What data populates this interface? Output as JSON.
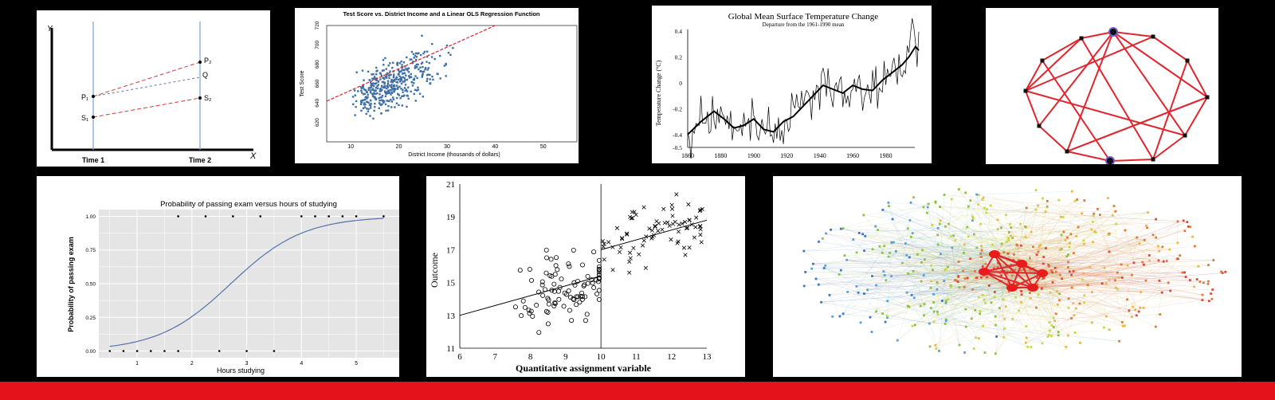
{
  "colors": {
    "background": "#000000",
    "bottom_bar": "#e3121b",
    "scatter_blue": "#3f6fa3",
    "fit_red": "#d9232e",
    "logit_curve": "#5571a8",
    "panel_grey": "#e5e5e5",
    "graph_red": "#e0262f"
  },
  "chart_data": [
    {
      "id": "did",
      "type": "line",
      "title": "",
      "xlabel": "X",
      "ylabel": "Y",
      "categories": [
        "Time 1",
        "Time 2"
      ],
      "point_labels": {
        "p1": "P₁",
        "s1": "S₁",
        "p2": "P₂",
        "q": "Q",
        "s2": "S₂"
      },
      "series": [
        {
          "points": [
            [
              "Time 1",
              "P₁"
            ],
            [
              "Time 2",
              "P₂"
            ]
          ],
          "style": "dashed-red"
        },
        {
          "points": [
            [
              "Time 1",
              "P₁"
            ],
            [
              "Time 2",
              "Q"
            ]
          ],
          "style": "dashed-blue"
        },
        {
          "points": [
            [
              "Time 1",
              "S₁"
            ],
            [
              "Time 2",
              "S₂"
            ]
          ],
          "style": "dashed-red"
        }
      ]
    },
    {
      "id": "ols",
      "type": "scatter",
      "title": "Test Score vs. District Income and a Linear OLS Regression Function",
      "xlabel": "District Income (thousands of dollars)",
      "ylabel": "Test Score",
      "xlim": [
        5,
        57
      ],
      "ylim": [
        600,
        720
      ],
      "xticks": [
        "10",
        "20",
        "30",
        "40",
        "50"
      ],
      "yticks": [
        "620",
        "640",
        "660",
        "680",
        "700",
        "720"
      ],
      "fit_line": [
        [
          5,
          642
        ],
        [
          40,
          720
        ]
      ]
    },
    {
      "id": "temp",
      "type": "line",
      "title": "Global Mean Surface Temperature Change",
      "subtitle": "Departure from the 1961-1990 mean",
      "xlabel": "",
      "ylabel": "Temperature Change (°C)",
      "xlim": [
        1860,
        2000
      ],
      "ylim": [
        -0.5,
        0.4
      ],
      "xticks": [
        "1860",
        "1880",
        "1900",
        "1920",
        "1940",
        "1960",
        "1980"
      ],
      "yticks": [
        "0.4",
        "0.2",
        "0",
        "-0.2",
        "-0.4",
        "-0.5"
      ],
      "smooth": [
        [
          1860,
          -0.4
        ],
        [
          1868,
          -0.3
        ],
        [
          1876,
          -0.22
        ],
        [
          1882,
          -0.28
        ],
        [
          1888,
          -0.35
        ],
        [
          1894,
          -0.33
        ],
        [
          1900,
          -0.28
        ],
        [
          1906,
          -0.36
        ],
        [
          1912,
          -0.38
        ],
        [
          1918,
          -0.3
        ],
        [
          1924,
          -0.26
        ],
        [
          1930,
          -0.18
        ],
        [
          1936,
          -0.1
        ],
        [
          1942,
          -0.02
        ],
        [
          1948,
          -0.05
        ],
        [
          1954,
          -0.08
        ],
        [
          1960,
          -0.02
        ],
        [
          1966,
          -0.05
        ],
        [
          1972,
          -0.06
        ],
        [
          1978,
          0.02
        ],
        [
          1984,
          0.08
        ],
        [
          1990,
          0.14
        ],
        [
          1994,
          0.2
        ],
        [
          1998,
          0.28
        ],
        [
          2000,
          0.25
        ]
      ]
    },
    {
      "id": "logit",
      "type": "line",
      "title": "Probability of passing exam versus hours of studying",
      "xlabel": "Hours studying",
      "ylabel": "Probability of passing exam",
      "xlim": [
        0.3,
        5.8
      ],
      "ylim": [
        -0.05,
        1.05
      ],
      "xticks": [
        "1",
        "2",
        "3",
        "4",
        "5"
      ],
      "yticks": [
        "0.00",
        "0.25",
        "0.50",
        "0.75",
        "1.00"
      ],
      "pass": [
        1.75,
        2.25,
        2.75,
        3.25,
        4.0,
        4.25,
        4.5,
        4.75,
        5.0,
        5.5
      ],
      "fail": [
        0.5,
        0.75,
        1.0,
        1.25,
        1.5,
        1.75,
        2.5,
        3.0,
        3.5
      ],
      "logistic": {
        "intercept": -4.0777,
        "slope": 1.5046
      }
    },
    {
      "id": "rdd",
      "type": "scatter",
      "title": "",
      "xlabel": "Quantitative assignment variable",
      "ylabel": "Outcome",
      "xlim": [
        6,
        13
      ],
      "ylim": [
        11,
        21
      ],
      "xticks": [
        "6",
        "7",
        "8",
        "9",
        "10",
        "11",
        "12",
        "13"
      ],
      "yticks": [
        "11",
        "13",
        "15",
        "17",
        "19",
        "21"
      ],
      "cutoff": 10,
      "left_fit": [
        [
          6,
          13.0
        ],
        [
          10,
          15.4
        ]
      ],
      "right_fit": [
        [
          10,
          17.0
        ],
        [
          13,
          18.8
        ]
      ]
    }
  ]
}
